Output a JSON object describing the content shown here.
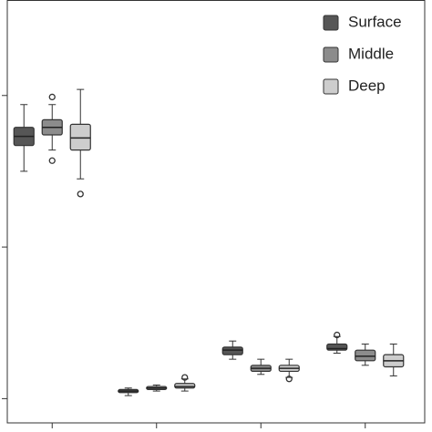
{
  "chart_data": {
    "type": "box",
    "categories": [
      null,
      null,
      null,
      null
    ],
    "ylim": [
      -0.16,
      2.63
    ],
    "yticks": [
      0,
      1,
      2
    ],
    "legend": "top-right",
    "series": [
      {
        "name": "Surface",
        "color": "#565656",
        "low": [
          1.5,
          0.02,
          0.26,
          0.3
        ],
        "q1": [
          1.67,
          0.04,
          0.29,
          0.32
        ],
        "median": [
          1.73,
          0.05,
          0.32,
          0.33
        ],
        "q3": [
          1.79,
          0.06,
          0.34,
          0.36
        ],
        "high": [
          1.94,
          0.07,
          0.38,
          0.41
        ],
        "outliers": [
          [],
          [],
          [],
          [
            0.42
          ]
        ]
      },
      {
        "name": "Middle",
        "color": "#8c8c8c",
        "low": [
          1.64,
          0.05,
          0.16,
          0.22
        ],
        "q1": [
          1.74,
          0.06,
          0.18,
          0.25
        ],
        "median": [
          1.79,
          0.07,
          0.2,
          0.28
        ],
        "q3": [
          1.84,
          0.08,
          0.22,
          0.32
        ],
        "high": [
          1.94,
          0.09,
          0.26,
          0.36
        ],
        "outliers": [
          [
            1.99,
            1.57
          ],
          [],
          [],
          []
        ]
      },
      {
        "name": "Deep",
        "color": "#cdcdcd",
        "low": [
          1.45,
          0.05,
          0.14,
          0.15
        ],
        "q1": [
          1.64,
          0.07,
          0.18,
          0.21
        ],
        "median": [
          1.72,
          0.08,
          0.2,
          0.25
        ],
        "q3": [
          1.81,
          0.1,
          0.22,
          0.29
        ],
        "high": [
          2.04,
          0.13,
          0.26,
          0.36
        ],
        "outliers": [
          [
            1.35
          ],
          [
            0.14
          ],
          [
            0.13
          ],
          []
        ]
      }
    ]
  }
}
